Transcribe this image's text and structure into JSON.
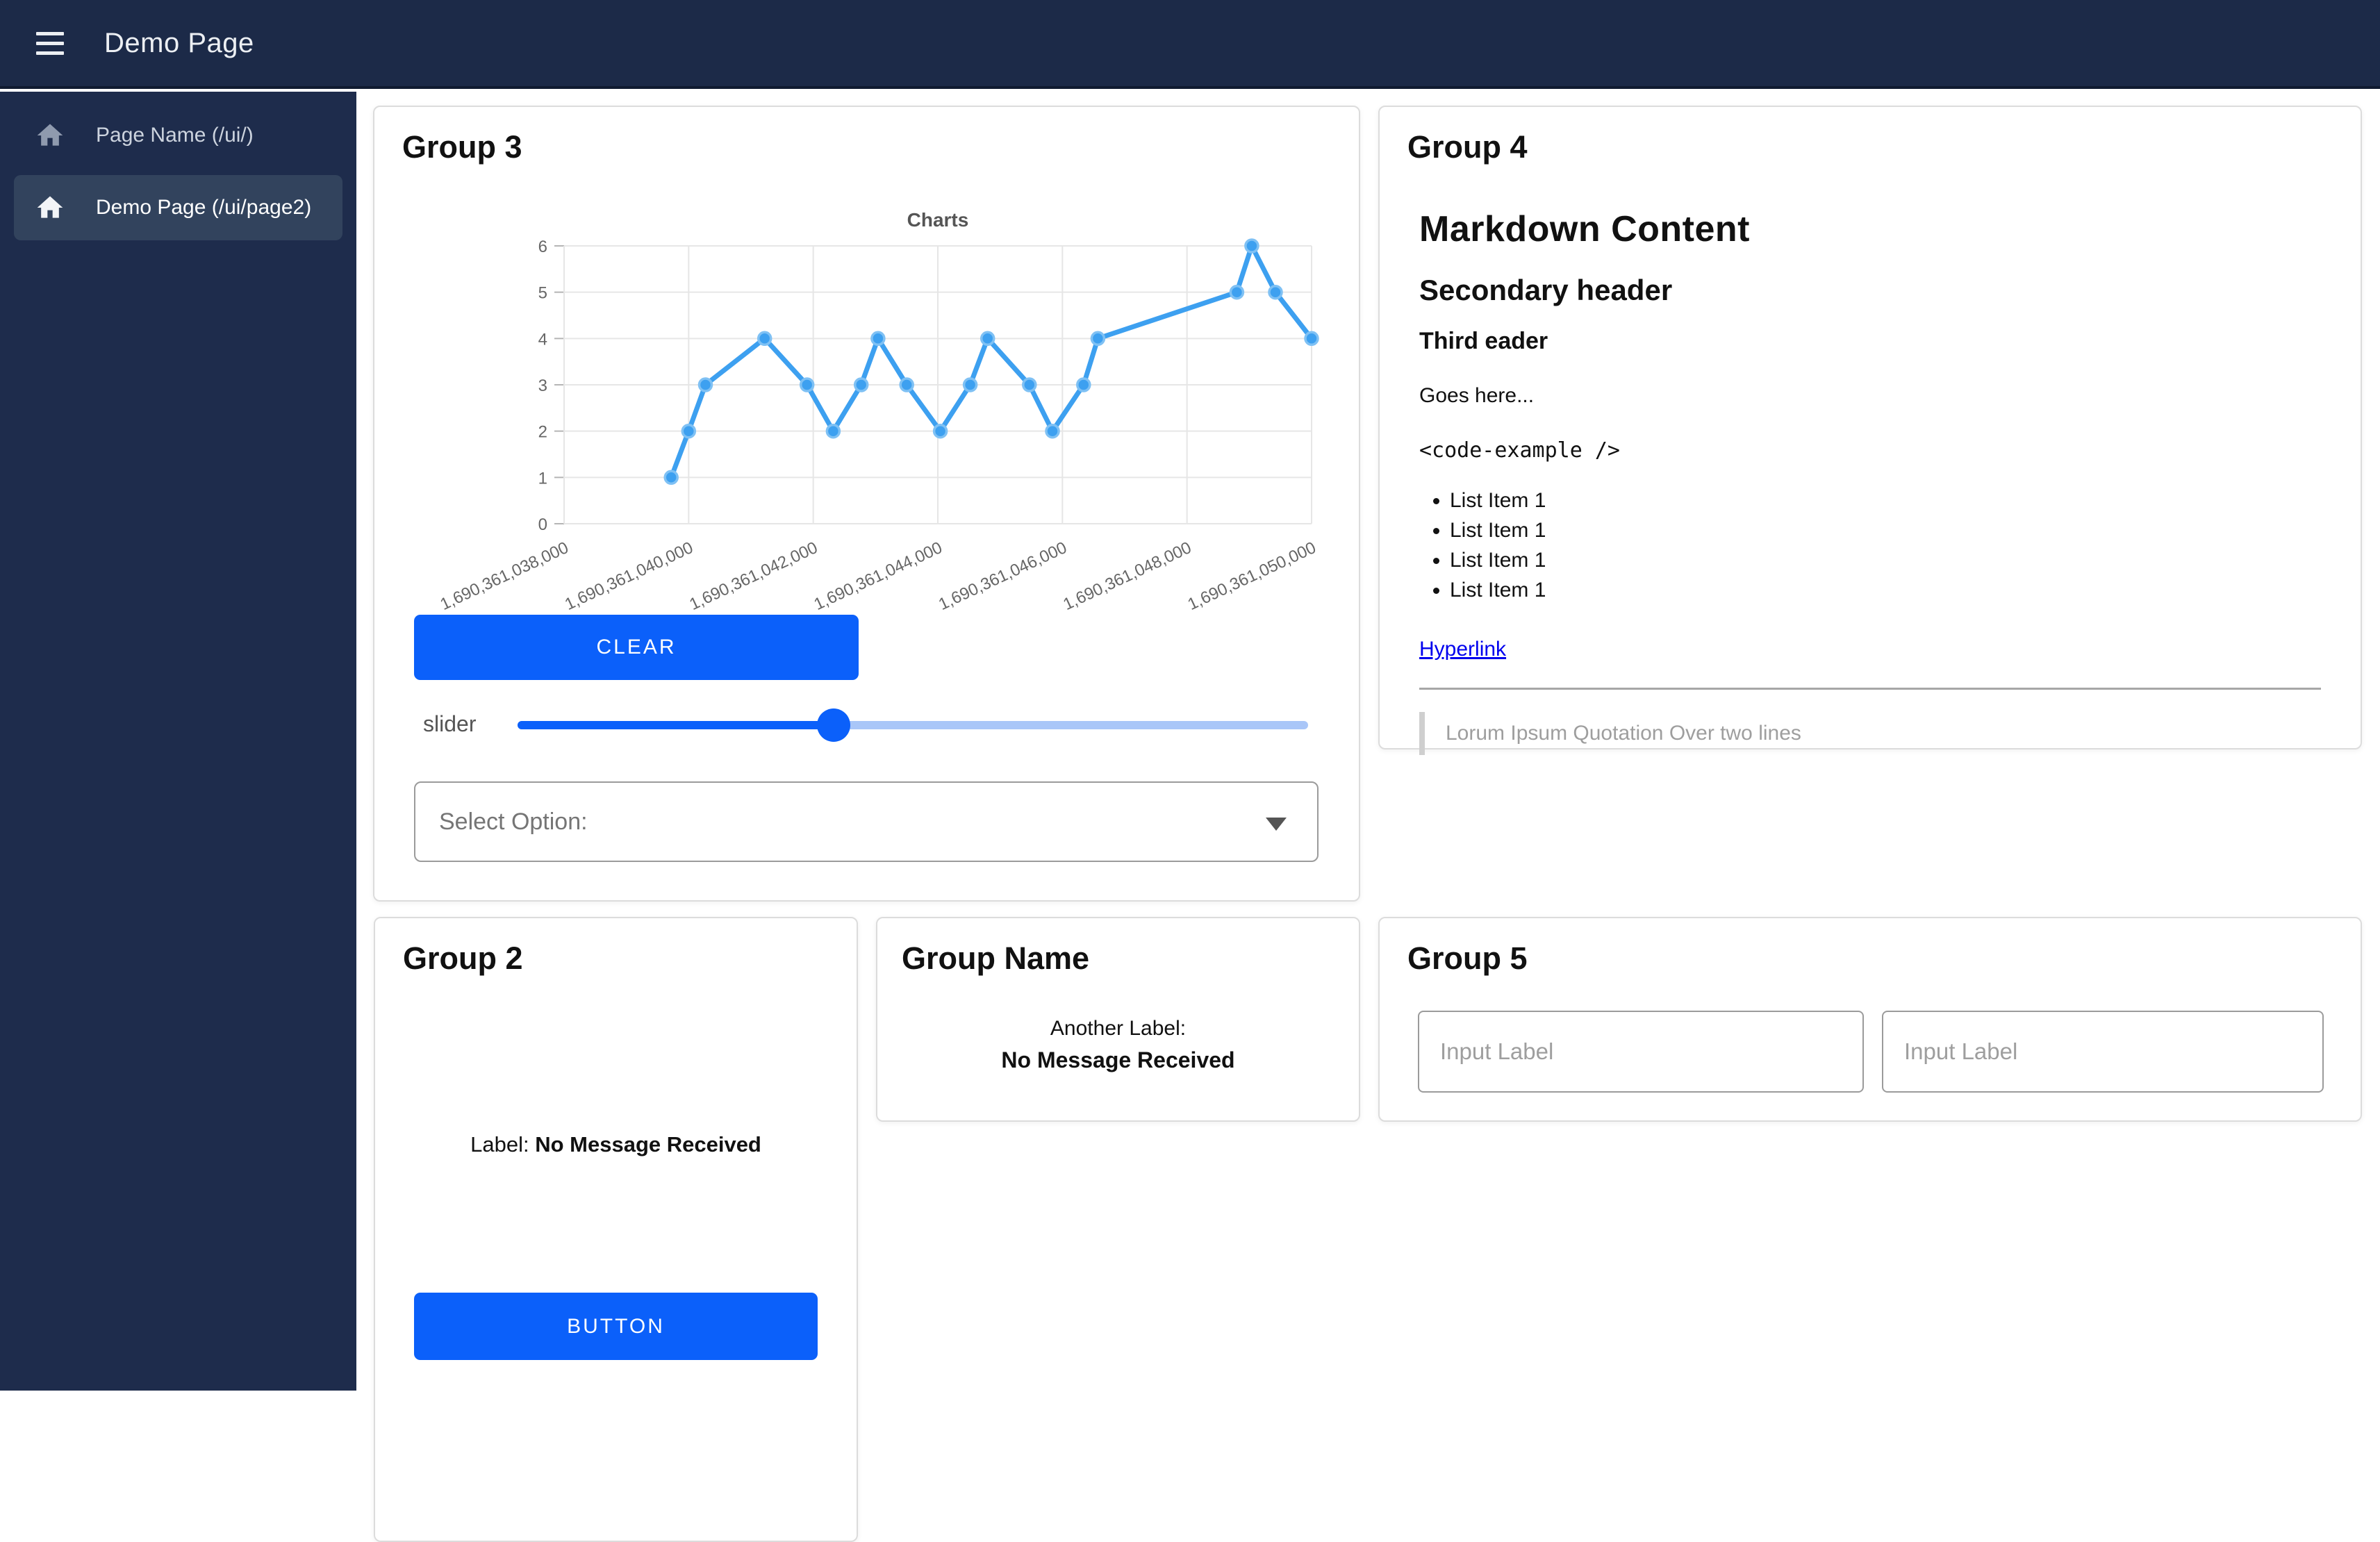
{
  "navbar": {
    "title": "Demo Page"
  },
  "sidebar": {
    "items": [
      {
        "label": "Page Name (/ui/)",
        "active": false
      },
      {
        "label": "Demo Page (/ui/page2)",
        "active": true
      }
    ]
  },
  "groups": {
    "group3": {
      "title": "Group 3",
      "clear_button": "CLEAR",
      "slider_label": "slider",
      "slider_value_pct": 40,
      "select_label": "Select Option:"
    },
    "group4": {
      "title": "Group 4",
      "markdown": {
        "h1": "Markdown Content",
        "h2": "Secondary header",
        "h3": "Third eader",
        "paragraph": "Goes here...",
        "code": "<code-example />",
        "list_items": [
          "List Item 1",
          "List Item 1",
          "List Item 1",
          "List Item 1"
        ],
        "link": "Hyperlink",
        "quote": "Lorum Ipsum Quotation Over two lines"
      }
    },
    "group2": {
      "title": "Group 2",
      "label_prefix": "Label:",
      "label_value": "No Message Received",
      "button": "BUTTON"
    },
    "group_name": {
      "title": "Group Name",
      "label_prefix": "Another Label:",
      "label_value": "No Message Received"
    },
    "group5": {
      "title": "Group 5",
      "inputs": [
        {
          "placeholder": "Input Label"
        },
        {
          "placeholder": "Input Label"
        }
      ]
    }
  },
  "chart_data": {
    "type": "line",
    "title": "Charts",
    "x": [
      1690361039720,
      1690361040000,
      1690361040270,
      1690361041220,
      1690361041900,
      1690361042320,
      1690361042770,
      1690361043040,
      1690361043500,
      1690361044040,
      1690361044520,
      1690361044800,
      1690361045470,
      1690361045840,
      1690361046340,
      1690361046570,
      1690361048800,
      1690361049040,
      1690361049420,
      1690361050000
    ],
    "values": [
      1,
      2,
      3,
      4,
      3,
      2,
      3,
      4,
      3,
      2,
      3,
      4,
      3,
      2,
      3,
      4,
      5,
      6,
      5,
      4
    ],
    "xlim": [
      1690361038000,
      1690361050000
    ],
    "ylim": [
      0,
      6
    ],
    "x_ticks": [
      1690361038000,
      1690361040000,
      1690361042000,
      1690361044000,
      1690361046000,
      1690361048000,
      1690361050000
    ],
    "x_tick_labels": [
      "1,690,361,038,000",
      "1,690,361,040,000",
      "1,690,361,042,000",
      "1,690,361,044,000",
      "1,690,361,046,000",
      "1,690,361,048,000",
      "1,690,361,050,000"
    ],
    "y_ticks": [
      0,
      1,
      2,
      3,
      4,
      5,
      6
    ],
    "grid": true,
    "legend": "none",
    "line_color": "#3da0f0",
    "marker_stroke": "#7fc1f4",
    "grid_color": "#e6e6e6"
  },
  "colors": {
    "accent_blue": "#0b60fa",
    "slider_track_light": "#a9c6f8",
    "navbar_bg": "#1c2a48",
    "sidebar_bg": "#1e2c4c",
    "sidebar_active_bg": "#32435d",
    "link_blue": "#0000ee",
    "chart_line": "#3da0f0"
  }
}
